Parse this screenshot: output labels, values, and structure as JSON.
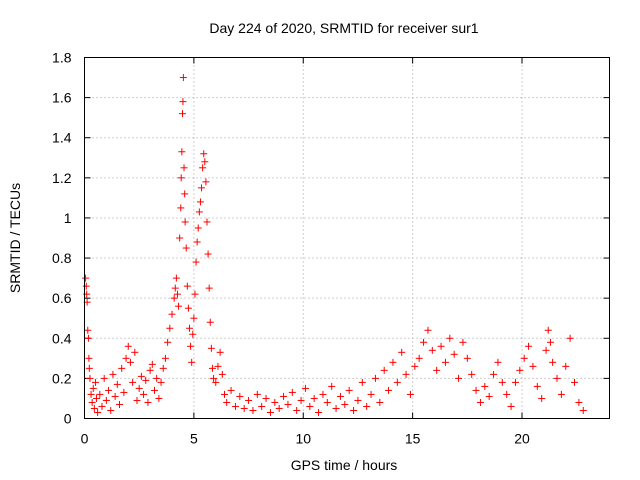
{
  "chart_data": {
    "type": "scatter",
    "title": "Day 224 of 2020, SRMTID for receiver sur1",
    "xlabel": "GPS time / hours",
    "ylabel": "SRMTID / TECUs",
    "xlim": [
      0,
      24
    ],
    "ylim": [
      0,
      1.8
    ],
    "xticks": [
      0,
      5,
      10,
      15,
      20
    ],
    "xtick_labels": [
      "0",
      "5",
      "10",
      "15",
      "20"
    ],
    "yticks": [
      0,
      0.2,
      0.4,
      0.6,
      0.8,
      1.0,
      1.2,
      1.4,
      1.6,
      1.8
    ],
    "ytick_labels": [
      "0",
      "0.2",
      "0.4",
      "0.6",
      "0.8",
      "1",
      "1.2",
      "1.4",
      "1.6",
      "1.8"
    ],
    "grid": true,
    "marker": "+",
    "color": "#ff0000",
    "series": [
      {
        "name": "sur1",
        "points": [
          [
            0.05,
            0.7
          ],
          [
            0.08,
            0.66
          ],
          [
            0.1,
            0.62
          ],
          [
            0.12,
            0.58
          ],
          [
            0.15,
            0.44
          ],
          [
            0.18,
            0.4
          ],
          [
            0.2,
            0.3
          ],
          [
            0.22,
            0.25
          ],
          [
            0.25,
            0.2
          ],
          [
            0.3,
            0.12
          ],
          [
            0.35,
            0.08
          ],
          [
            0.4,
            0.15
          ],
          [
            0.45,
            0.05
          ],
          [
            0.5,
            0.18
          ],
          [
            0.55,
            0.1
          ],
          [
            0.6,
            0.03
          ],
          [
            0.7,
            0.12
          ],
          [
            0.8,
            0.06
          ],
          [
            0.9,
            0.2
          ],
          [
            1.0,
            0.09
          ],
          [
            1.1,
            0.14
          ],
          [
            1.2,
            0.04
          ],
          [
            1.3,
            0.22
          ],
          [
            1.4,
            0.11
          ],
          [
            1.5,
            0.17
          ],
          [
            1.6,
            0.07
          ],
          [
            1.7,
            0.25
          ],
          [
            1.8,
            0.13
          ],
          [
            1.9,
            0.3
          ],
          [
            2.0,
            0.36
          ],
          [
            2.1,
            0.28
          ],
          [
            2.2,
            0.18
          ],
          [
            2.3,
            0.33
          ],
          [
            2.4,
            0.09
          ],
          [
            2.5,
            0.15
          ],
          [
            2.6,
            0.21
          ],
          [
            2.7,
            0.12
          ],
          [
            2.8,
            0.19
          ],
          [
            2.9,
            0.08
          ],
          [
            3.0,
            0.24
          ],
          [
            3.1,
            0.27
          ],
          [
            3.2,
            0.14
          ],
          [
            3.3,
            0.2
          ],
          [
            3.4,
            0.1
          ],
          [
            3.5,
            0.18
          ],
          [
            3.6,
            0.25
          ],
          [
            3.7,
            0.3
          ],
          [
            3.8,
            0.38
          ],
          [
            3.9,
            0.45
          ],
          [
            4.0,
            0.52
          ],
          [
            4.1,
            0.6
          ],
          [
            4.15,
            0.65
          ],
          [
            4.2,
            0.7
          ],
          [
            4.25,
            0.62
          ],
          [
            4.3,
            0.56
          ],
          [
            4.35,
            0.9
          ],
          [
            4.4,
            1.05
          ],
          [
            4.42,
            1.2
          ],
          [
            4.45,
            1.33
          ],
          [
            4.48,
            1.52
          ],
          [
            4.5,
            1.58
          ],
          [
            4.52,
            1.7
          ],
          [
            4.55,
            1.25
          ],
          [
            4.58,
            1.12
          ],
          [
            4.6,
            0.98
          ],
          [
            4.65,
            0.85
          ],
          [
            4.7,
            0.66
          ],
          [
            4.75,
            0.55
          ],
          [
            4.8,
            0.45
          ],
          [
            4.85,
            0.36
          ],
          [
            4.9,
            0.28
          ],
          [
            4.95,
            0.42
          ],
          [
            5.0,
            0.5
          ],
          [
            5.05,
            0.62
          ],
          [
            5.1,
            0.78
          ],
          [
            5.15,
            0.88
          ],
          [
            5.2,
            0.95
          ],
          [
            5.25,
            1.03
          ],
          [
            5.3,
            1.08
          ],
          [
            5.35,
            1.15
          ],
          [
            5.4,
            1.25
          ],
          [
            5.45,
            1.32
          ],
          [
            5.5,
            1.28
          ],
          [
            5.55,
            1.18
          ],
          [
            5.6,
            0.98
          ],
          [
            5.65,
            0.82
          ],
          [
            5.7,
            0.65
          ],
          [
            5.75,
            0.48
          ],
          [
            5.8,
            0.35
          ],
          [
            5.85,
            0.25
          ],
          [
            5.9,
            0.2
          ],
          [
            6.0,
            0.18
          ],
          [
            6.1,
            0.26
          ],
          [
            6.2,
            0.33
          ],
          [
            6.3,
            0.22
          ],
          [
            6.4,
            0.12
          ],
          [
            6.5,
            0.08
          ],
          [
            6.7,
            0.14
          ],
          [
            6.9,
            0.06
          ],
          [
            7.1,
            0.11
          ],
          [
            7.3,
            0.05
          ],
          [
            7.5,
            0.09
          ],
          [
            7.7,
            0.04
          ],
          [
            7.9,
            0.12
          ],
          [
            8.1,
            0.06
          ],
          [
            8.3,
            0.1
          ],
          [
            8.5,
            0.03
          ],
          [
            8.7,
            0.08
          ],
          [
            8.9,
            0.05
          ],
          [
            9.1,
            0.11
          ],
          [
            9.3,
            0.07
          ],
          [
            9.5,
            0.13
          ],
          [
            9.7,
            0.04
          ],
          [
            9.9,
            0.09
          ],
          [
            10.1,
            0.15
          ],
          [
            10.3,
            0.06
          ],
          [
            10.5,
            0.1
          ],
          [
            10.7,
            0.03
          ],
          [
            10.9,
            0.12
          ],
          [
            11.1,
            0.08
          ],
          [
            11.3,
            0.16
          ],
          [
            11.5,
            0.05
          ],
          [
            11.7,
            0.11
          ],
          [
            11.9,
            0.07
          ],
          [
            12.1,
            0.14
          ],
          [
            12.3,
            0.04
          ],
          [
            12.5,
            0.09
          ],
          [
            12.7,
            0.18
          ],
          [
            12.9,
            0.06
          ],
          [
            13.1,
            0.12
          ],
          [
            13.3,
            0.2
          ],
          [
            13.5,
            0.08
          ],
          [
            13.7,
            0.24
          ],
          [
            13.9,
            0.14
          ],
          [
            14.1,
            0.28
          ],
          [
            14.3,
            0.18
          ],
          [
            14.5,
            0.33
          ],
          [
            14.7,
            0.22
          ],
          [
            14.9,
            0.12
          ],
          [
            15.1,
            0.26
          ],
          [
            15.3,
            0.3
          ],
          [
            15.5,
            0.38
          ],
          [
            15.7,
            0.44
          ],
          [
            15.9,
            0.34
          ],
          [
            16.1,
            0.24
          ],
          [
            16.3,
            0.36
          ],
          [
            16.5,
            0.28
          ],
          [
            16.7,
            0.4
          ],
          [
            16.9,
            0.32
          ],
          [
            17.1,
            0.2
          ],
          [
            17.3,
            0.38
          ],
          [
            17.5,
            0.3
          ],
          [
            17.7,
            0.22
          ],
          [
            17.9,
            0.14
          ],
          [
            18.1,
            0.08
          ],
          [
            18.3,
            0.16
          ],
          [
            18.5,
            0.11
          ],
          [
            18.7,
            0.22
          ],
          [
            18.9,
            0.28
          ],
          [
            19.1,
            0.18
          ],
          [
            19.3,
            0.12
          ],
          [
            19.5,
            0.06
          ],
          [
            19.7,
            0.18
          ],
          [
            19.9,
            0.24
          ],
          [
            20.1,
            0.3
          ],
          [
            20.3,
            0.36
          ],
          [
            20.5,
            0.26
          ],
          [
            20.7,
            0.16
          ],
          [
            20.9,
            0.1
          ],
          [
            21.1,
            0.34
          ],
          [
            21.2,
            0.44
          ],
          [
            21.3,
            0.38
          ],
          [
            21.4,
            0.28
          ],
          [
            21.6,
            0.2
          ],
          [
            21.8,
            0.12
          ],
          [
            22.0,
            0.26
          ],
          [
            22.2,
            0.4
          ],
          [
            22.4,
            0.18
          ],
          [
            22.6,
            0.08
          ],
          [
            22.8,
            0.04
          ]
        ]
      }
    ]
  }
}
